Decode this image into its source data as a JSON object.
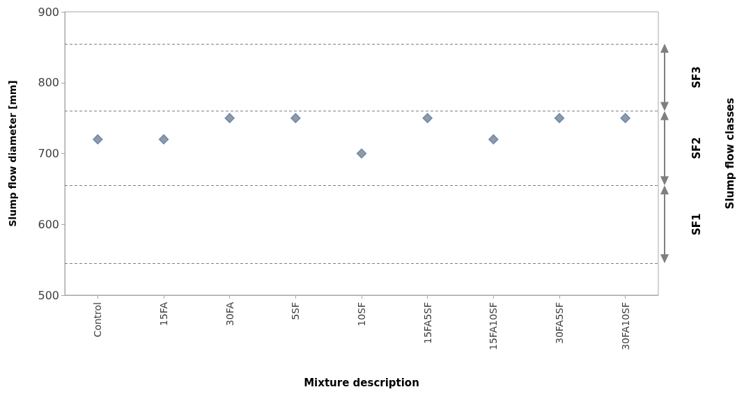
{
  "chart_data": {
    "type": "scatter",
    "xlabel": "Mixture description",
    "ylabel": "Slump flow diameter [mm]",
    "categories": [
      "Control",
      "15FA",
      "30FA",
      "5SF",
      "10SF",
      "15FA5SF",
      "15FA10SF",
      "30FA5SF",
      "30FA10SF"
    ],
    "values": [
      720,
      720,
      750,
      750,
      700,
      750,
      720,
      750,
      750
    ],
    "color": "#7f7f7f",
    "marker": "diamond",
    "ylim": [
      500,
      900
    ],
    "yticks": [
      500,
      600,
      700,
      800,
      900
    ],
    "grid": false,
    "ref_lines": [
      {
        "axis": "y",
        "value": 855,
        "line_style": "dashed",
        "color": "#7f7f7f"
      },
      {
        "axis": "y",
        "value": 760,
        "line_style": "dashed",
        "color": "#7f7f7f"
      },
      {
        "axis": "y",
        "value": 655,
        "line_style": "dashed",
        "color": "#7f7f7f"
      },
      {
        "axis": "y",
        "value": 545,
        "line_style": "dashed",
        "color": "#7f7f7f"
      }
    ],
    "annotations": [
      "SF3",
      "SF2",
      "SF1",
      "Slump flow classes"
    ]
  }
}
